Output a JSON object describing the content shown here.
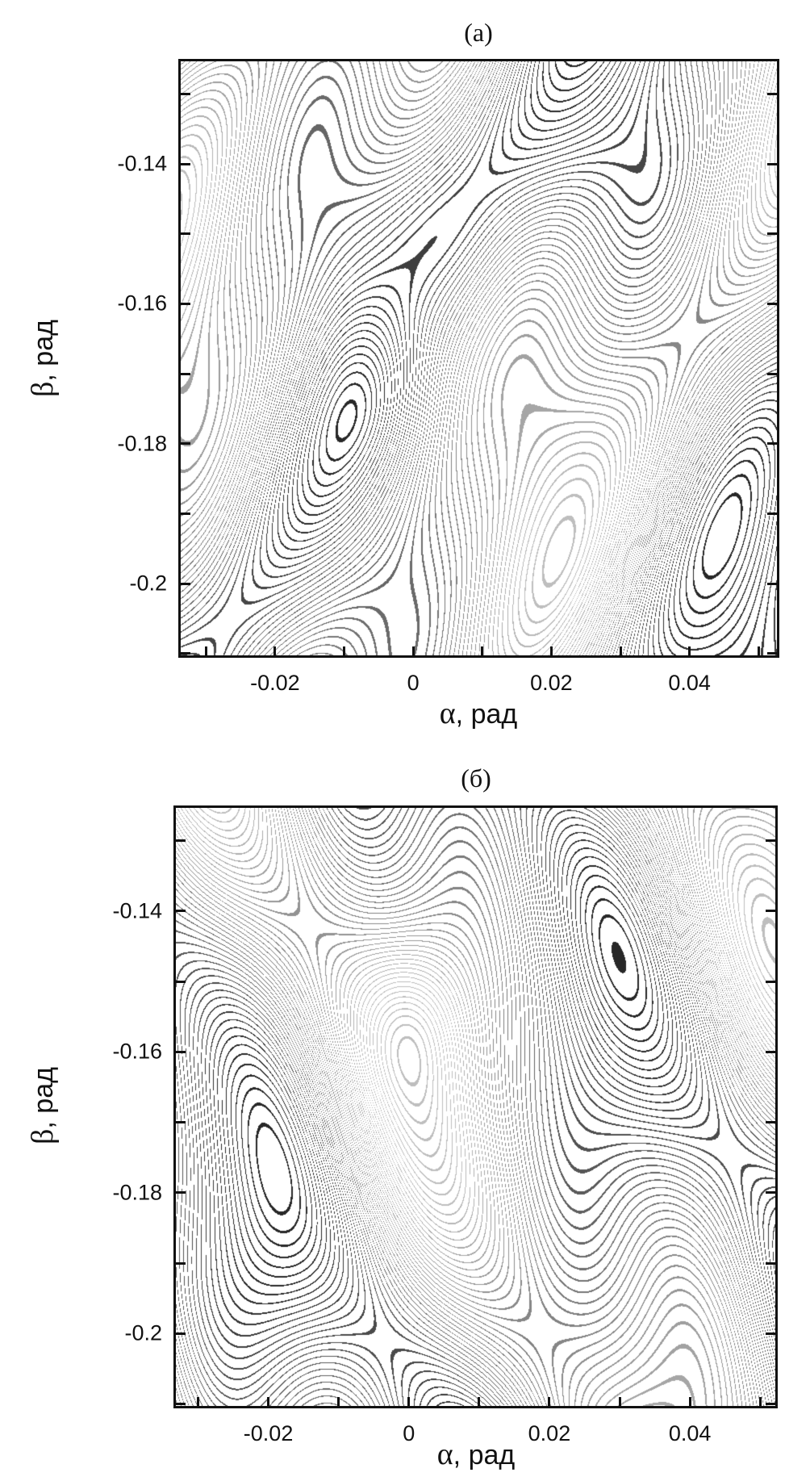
{
  "chart_data": [
    {
      "type": "heatmap",
      "subtype": "contour",
      "title": "(a)",
      "xlabel_symbol": "α",
      "xlabel_unit": ", рад",
      "ylabel_symbol": "β",
      "ylabel_unit": ", рад",
      "xlim": [
        -0.034,
        0.053
      ],
      "ylim": [
        -0.2106,
        -0.125
      ],
      "xticks": [
        -0.02,
        0,
        0.02,
        0.04
      ],
      "xtick_labels": [
        "-0.02",
        "0",
        "0.02",
        "0.04"
      ],
      "yticks": [
        -0.14,
        -0.16,
        -0.18,
        -0.2
      ],
      "ytick_labels": [
        "-0.14",
        "-0.16",
        "-0.18",
        "-0.2"
      ],
      "colormap": "grayscale contour lines",
      "variant": 0
    },
    {
      "type": "heatmap",
      "subtype": "contour",
      "title": "(б)",
      "xlabel_symbol": "α",
      "xlabel_unit": ", рад",
      "ylabel_symbol": "β",
      "ylabel_unit": ", рад",
      "xlim": [
        -0.0335,
        0.0525
      ],
      "ylim": [
        -0.2106,
        -0.125
      ],
      "xticks": [
        -0.02,
        0,
        0.02,
        0.04
      ],
      "xtick_labels": [
        "-0.02",
        "0",
        "0.02",
        "0.04"
      ],
      "yticks": [
        -0.14,
        -0.16,
        -0.18,
        -0.2
      ],
      "ytick_labels": [
        "-0.14",
        "-0.16",
        "-0.18",
        "-0.2"
      ],
      "colormap": "grayscale contour lines",
      "variant": 1
    }
  ]
}
